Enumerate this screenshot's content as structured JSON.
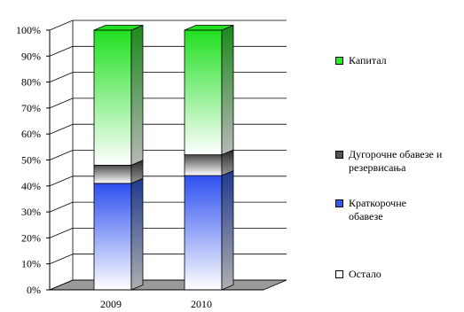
{
  "chart_data": {
    "type": "bar",
    "stacked": true,
    "percent": true,
    "three_d": true,
    "categories": [
      "2009",
      "2010"
    ],
    "series": [
      {
        "name": "Остало",
        "values": [
          0,
          0
        ],
        "color": "#ffffff"
      },
      {
        "name": "Краткорочне обавезе",
        "values": [
          41,
          44
        ],
        "color": "#3355ff"
      },
      {
        "name": "Дугорочне обавезе и резервисања",
        "values": [
          7,
          8
        ],
        "color": "#555555"
      },
      {
        "name": "Капитал",
        "values": [
          52,
          48
        ],
        "color": "#22ee22"
      }
    ],
    "legend_order": [
      3,
      2,
      1,
      0
    ],
    "y_ticks": [
      "0%",
      "10%",
      "20%",
      "30%",
      "40%",
      "50%",
      "60%",
      "70%",
      "80%",
      "90%",
      "100%"
    ],
    "ylim": [
      0,
      100
    ],
    "title": "",
    "xlabel": "",
    "ylabel": "",
    "grid": true,
    "legend_position": "right"
  }
}
